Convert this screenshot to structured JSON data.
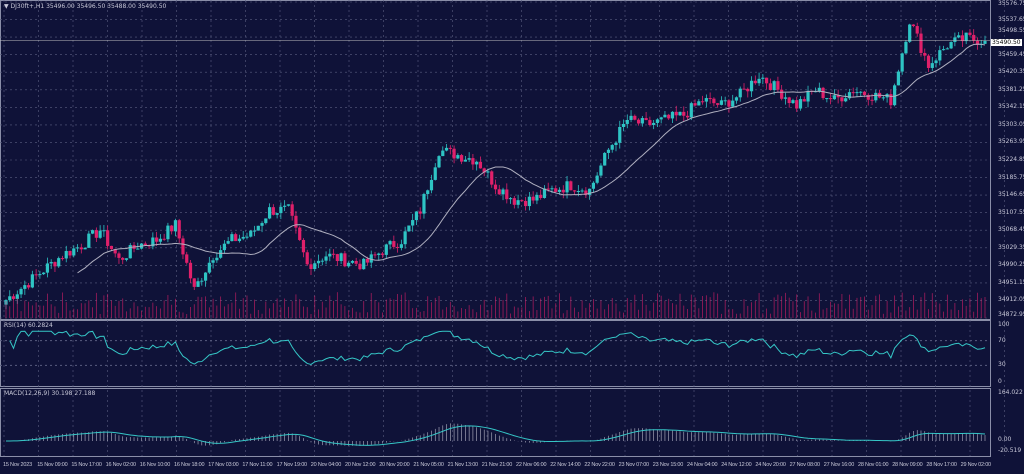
{
  "header": {
    "symbol": "DJ30ft+,H1",
    "ohlc": "35496.00 35496.50 35488.00 35490.50"
  },
  "rsi": {
    "label": "RSI(14) 60.2824",
    "levels": [
      "100",
      "70",
      "30",
      "0"
    ]
  },
  "macd": {
    "label": "MACD(12,26,9) 30.198 27.188",
    "levels": [
      "164.022",
      "0.00",
      "-20.519"
    ]
  },
  "colors": {
    "background": "#0f1238",
    "bull": "#2ec4c4",
    "bear": "#e0206a",
    "ma": "#b0b0c0",
    "indicator": "#35c6c6",
    "grid": "#5a5e80"
  },
  "chart_data": {
    "type": "candlestick",
    "ylim": [
      34872.95,
      35576.75
    ],
    "y_ticks": [
      "35576.75",
      "35537.65",
      "35498.55",
      "35459.45",
      "35420.35",
      "35381.25",
      "35342.15",
      "35303.05",
      "35263.95",
      "35224.85",
      "35185.75",
      "35146.65",
      "35107.55",
      "35068.45",
      "35029.35",
      "34990.25",
      "34951.15",
      "34912.05",
      "34872.95"
    ],
    "current_price": "35490.50",
    "x_ticks": [
      "15 Nov 2023",
      "15 Nov 09:00",
      "15 Nov 17:00",
      "16 Nov 02:00",
      "16 Nov 10:00",
      "16 Nov 18:00",
      "17 Nov 03:00",
      "17 Nov 11:00",
      "17 Nov 19:00",
      "20 Nov 04:00",
      "20 Nov 12:00",
      "20 Nov 20:00",
      "21 Nov 05:00",
      "21 Nov 13:00",
      "21 Nov 21:00",
      "22 Nov 06:00",
      "22 Nov 14:00",
      "22 Nov 22:00",
      "23 Nov 07:00",
      "23 Nov 15:00",
      "24 Nov 04:00",
      "24 Nov 12:00",
      "24 Nov 20:00",
      "27 Nov 08:00",
      "27 Nov 16:00",
      "28 Nov 01:00",
      "28 Nov 09:00",
      "28 Nov 17:00",
      "29 Nov 02:00"
    ],
    "close_waypoints": [
      34913,
      34946,
      34980,
      35013,
      35035,
      35069,
      35002,
      35035,
      35047,
      35080,
      34935,
      35013,
      35047,
      35058,
      35113,
      35113,
      34991,
      35013,
      35002,
      34991,
      35024,
      35047,
      35113,
      35247,
      35236,
      35225,
      35169,
      35136,
      35136,
      35158,
      35169,
      35158,
      35247,
      35314,
      35303,
      35314,
      35325,
      35358,
      35347,
      35370,
      35414,
      35381,
      35347,
      35381,
      35358,
      35381,
      35370,
      35358,
      35537,
      35436,
      35481,
      35496,
      35490.5
    ],
    "moving_average": "SMA overlay",
    "indicators": [
      "RSI(14)",
      "MACD(12,26,9)",
      "Volume"
    ]
  }
}
